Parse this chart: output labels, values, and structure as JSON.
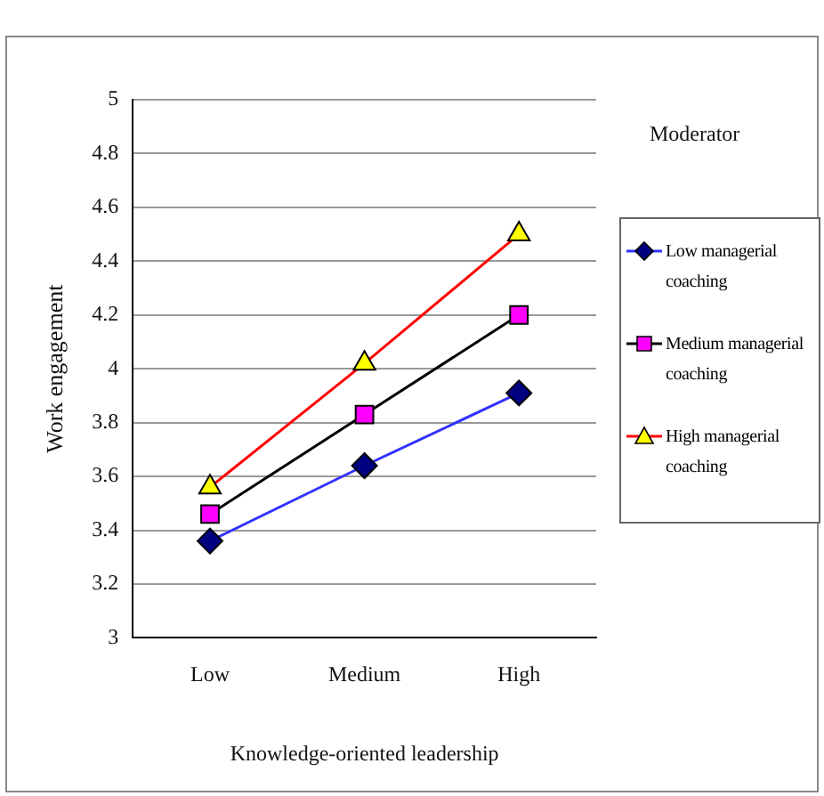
{
  "chart_data": {
    "type": "line",
    "xlabel": "Knowledge-oriented leadership",
    "ylabel": "Work engagement",
    "legend_title": "Moderator",
    "categories": [
      "Low",
      "Medium",
      "High"
    ],
    "series": [
      {
        "name": "Low managerial coaching",
        "color": "#3333ff",
        "colors": [
          "#000080",
          "#000080",
          "#000080"
        ],
        "marker": "diamond",
        "values": [
          3.36,
          3.64,
          3.91
        ]
      },
      {
        "name": "Medium managerial coaching",
        "color": "#000000",
        "colors": [
          "#ff00ff",
          "#ff00ff",
          "#ff00ff"
        ],
        "marker": "square",
        "values": [
          3.46,
          3.83,
          4.2
        ]
      },
      {
        "name": "High managerial coaching",
        "color": "#ff0000",
        "colors": [
          "#ffff00",
          "#ffff00",
          "#ffff00"
        ],
        "marker": "triangle",
        "values": [
          3.56,
          4.02,
          4.5
        ]
      }
    ],
    "ylim": [
      3,
      5
    ],
    "yticks": [
      3,
      3.2,
      3.4,
      3.6,
      3.8,
      4,
      4.2,
      4.4,
      4.6,
      4.8,
      5
    ],
    "grid": "y",
    "legend": "right",
    "line_style": "solid"
  }
}
